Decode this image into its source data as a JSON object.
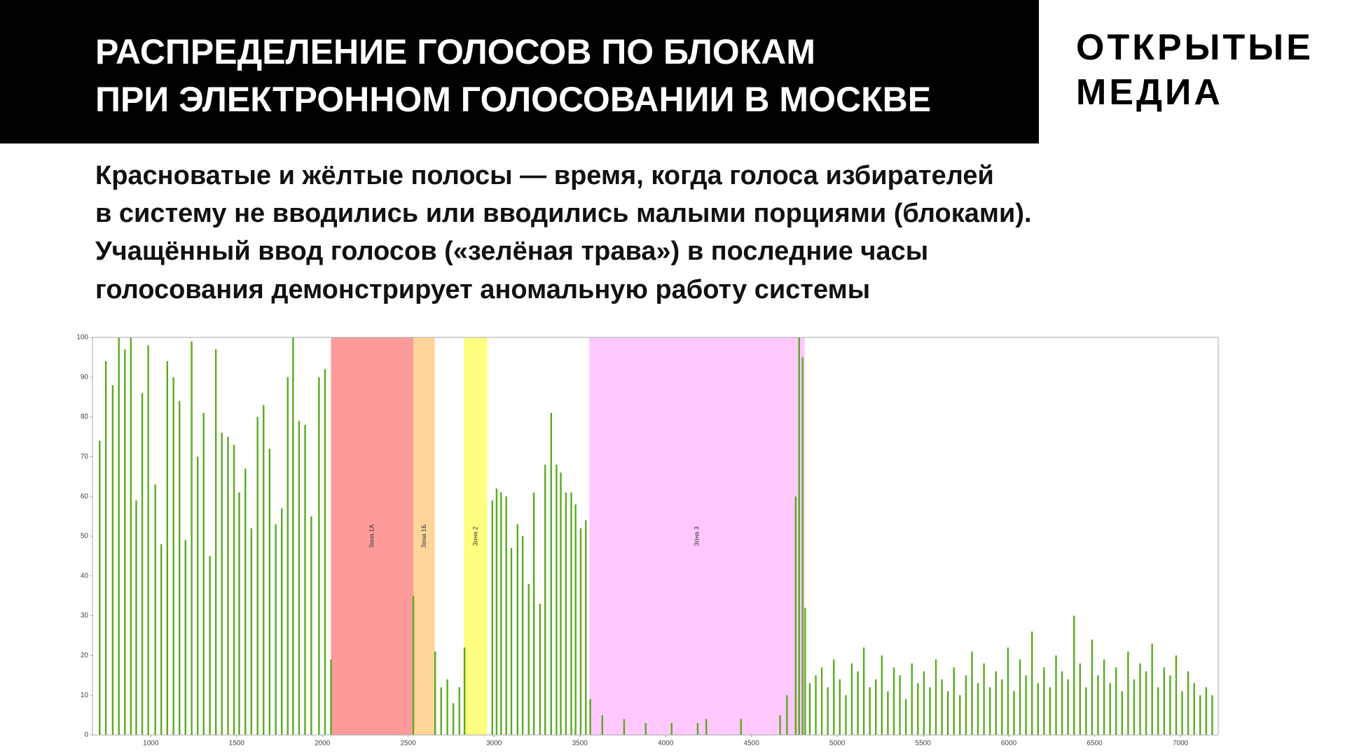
{
  "header": {
    "title": [
      "РАСПРЕДЕЛЕНИЕ ГОЛОСОВ ПО БЛОКАМ",
      "ПРИ ЭЛЕКТРОННОМ ГОЛОСОВАНИИ В МОСКВЕ"
    ],
    "brand": [
      "ОТКРЫТЫЕ",
      "МЕДИА"
    ]
  },
  "subtitle": [
    "Красноватые и жёлтые полосы — время, когда голоса избирателей",
    "в систему не вводились или вводились малыми порциями (блоками).",
    "Учащённый ввод голосов («зелёная трава») в последние часы",
    "голосования демонстрирует аномальную работу системы"
  ],
  "chart_data": {
    "type": "bar",
    "color": "#5aaa1e",
    "xlim": [
      660,
      7220
    ],
    "ylim": [
      0,
      100
    ],
    "xticks": [
      1000,
      1500,
      2000,
      2500,
      3000,
      3500,
      4000,
      4500,
      5000,
      5500,
      6000,
      6500,
      7000
    ],
    "yticks": [
      0,
      10,
      20,
      30,
      40,
      50,
      60,
      70,
      80,
      90,
      100
    ],
    "zones": [
      {
        "label": "Зона 1А",
        "from": 2050,
        "to": 2530,
        "color": "#ff9a9a"
      },
      {
        "label": "Зона 1Б",
        "from": 2530,
        "to": 2655,
        "color": "#ffd699"
      },
      {
        "label": "Зона 2",
        "from": 2825,
        "to": 2960,
        "color": "#ffff80"
      },
      {
        "label": "Зона 3",
        "from": 3555,
        "to": 4810,
        "color": "#ffc8ff"
      }
    ],
    "x": [
      702,
      738,
      778,
      814,
      849,
      884,
      915,
      950,
      985,
      1026,
      1061,
      1096,
      1132,
      1167,
      1202,
      1238,
      1273,
      1308,
      1344,
      1379,
      1414,
      1450,
      1485,
      1515,
      1551,
      1586,
      1622,
      1657,
      1692,
      1728,
      1763,
      1798,
      1829,
      1864,
      1899,
      1935,
      1980,
      2015,
      2050,
      2530,
      2657,
      2692,
      2728,
      2763,
      2798,
      2828,
      2990,
      3015,
      3041,
      3071,
      3101,
      3137,
      3167,
      3202,
      3232,
      3268,
      3298,
      3333,
      3364,
      3389,
      3419,
      3450,
      3475,
      3505,
      3535,
      3561,
      3631,
      3758,
      3884,
      4035,
      4187,
      4237,
      4439,
      4667,
      4707,
      4758,
      4778,
      4798,
      4813,
      4840,
      4875,
      4910,
      4945,
      4980,
      5015,
      5050,
      5085,
      5120,
      5155,
      5190,
      5225,
      5260,
      5295,
      5330,
      5365,
      5400,
      5435,
      5470,
      5505,
      5540,
      5575,
      5610,
      5645,
      5680,
      5715,
      5750,
      5785,
      5820,
      5855,
      5890,
      5925,
      5960,
      5995,
      6030,
      6065,
      6100,
      6135,
      6170,
      6205,
      6240,
      6275,
      6310,
      6345,
      6380,
      6415,
      6450,
      6485,
      6520,
      6555,
      6590,
      6625,
      6660,
      6695,
      6730,
      6765,
      6800,
      6835,
      6870,
      6905,
      6940,
      6975,
      7010,
      7045,
      7080,
      7115,
      7150,
      7185
    ],
    "values": [
      74,
      94,
      88,
      100,
      97,
      100,
      59,
      86,
      98,
      63,
      48,
      94,
      90,
      84,
      49,
      99,
      70,
      81,
      45,
      97,
      76,
      75,
      73,
      61,
      67,
      52,
      80,
      83,
      72,
      53,
      57,
      90,
      100,
      79,
      78,
      55,
      90,
      92,
      19,
      35,
      21,
      12,
      14,
      8,
      12,
      22,
      59,
      62,
      61,
      60,
      47,
      53,
      50,
      38,
      61,
      33,
      68,
      81,
      68,
      66,
      61,
      61,
      58,
      52,
      54,
      9,
      5,
      4,
      3,
      3,
      3,
      4,
      4,
      5,
      10,
      60,
      100,
      95,
      32,
      13,
      15,
      17,
      12,
      19,
      14,
      10,
      18,
      16,
      22,
      12,
      14,
      20,
      11,
      17,
      15,
      9,
      18,
      13,
      16,
      12,
      19,
      14,
      11,
      17,
      10,
      15,
      21,
      13,
      18,
      12,
      16,
      14,
      22,
      11,
      19,
      15,
      26,
      13,
      17,
      12,
      20,
      16,
      14,
      30,
      18,
      12,
      24,
      15,
      19,
      13,
      17,
      11,
      21,
      14,
      18,
      16,
      23,
      12,
      17,
      15,
      20,
      11,
      16,
      13,
      10,
      12,
      10
    ]
  }
}
